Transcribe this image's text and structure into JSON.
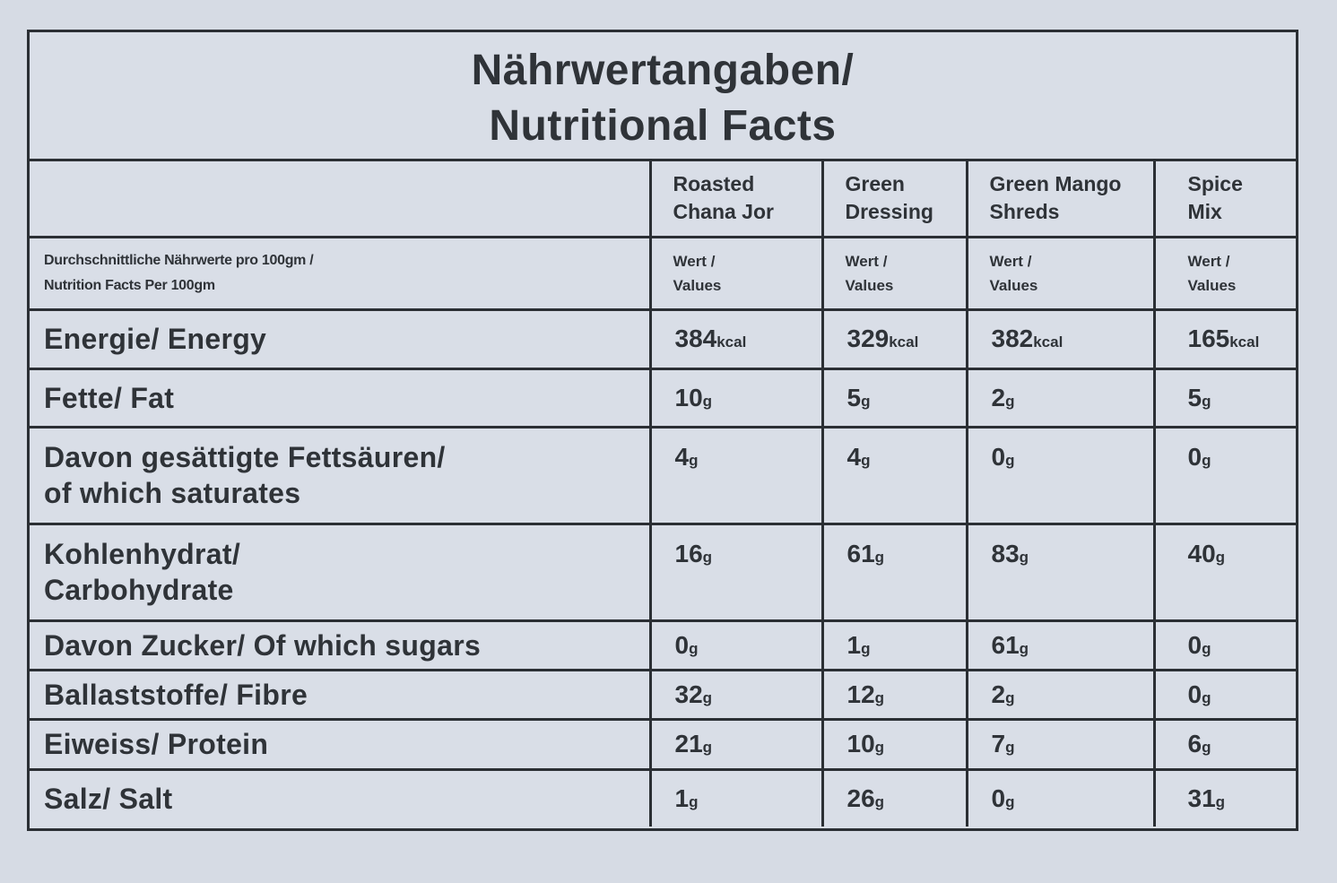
{
  "title": {
    "line1": "Nährwertangaben/",
    "line2": "Nutritional Facts"
  },
  "products": [
    {
      "line1": "Roasted",
      "line2": "Chana Jor"
    },
    {
      "line1": "Green",
      "line2": "Dressing"
    },
    {
      "line1": "Green Mango",
      "line2": "Shreds"
    },
    {
      "line1": "Spice",
      "line2": "Mix"
    }
  ],
  "subheader": {
    "label_line1": "Durchschnittliche Nährwerte pro 100gm /",
    "label_line2": "Nutrition Facts Per 100gm",
    "value_line1": "Wert /",
    "value_line2": "Values"
  },
  "rows": [
    {
      "label_line1": "Energie/ Energy",
      "label_line2": "",
      "unit": "kcal",
      "values": [
        "384",
        "329",
        "382",
        "165"
      ]
    },
    {
      "label_line1": "Fette/ Fat",
      "label_line2": "",
      "unit": "g",
      "values": [
        "10",
        "5",
        "2",
        "5"
      ]
    },
    {
      "label_line1": "Davon gesättigte Fettsäuren/",
      "label_line2": "of which saturates",
      "unit": "g",
      "values": [
        "4",
        "4",
        "0",
        "0"
      ]
    },
    {
      "label_line1": "Kohlenhydrat/",
      "label_line2": "Carbohydrate",
      "unit": "g",
      "values": [
        "16",
        "61",
        "83",
        "40"
      ]
    },
    {
      "label_line1": "Davon Zucker/ Of which sugars",
      "label_line2": "",
      "unit": "g",
      "values": [
        "0",
        "1",
        "61",
        "0"
      ]
    },
    {
      "label_line1": "Ballaststoffe/ Fibre",
      "label_line2": "",
      "unit": "g",
      "values": [
        "32",
        "12",
        "2",
        "0"
      ]
    },
    {
      "label_line1": "Eiweiss/ Protein",
      "label_line2": "",
      "unit": "g",
      "values": [
        "21",
        "10",
        "7",
        "6"
      ]
    },
    {
      "label_line1": "Salz/ Salt",
      "label_line2": "",
      "unit": "g",
      "values": [
        "1",
        "26",
        "0",
        "31"
      ]
    }
  ]
}
